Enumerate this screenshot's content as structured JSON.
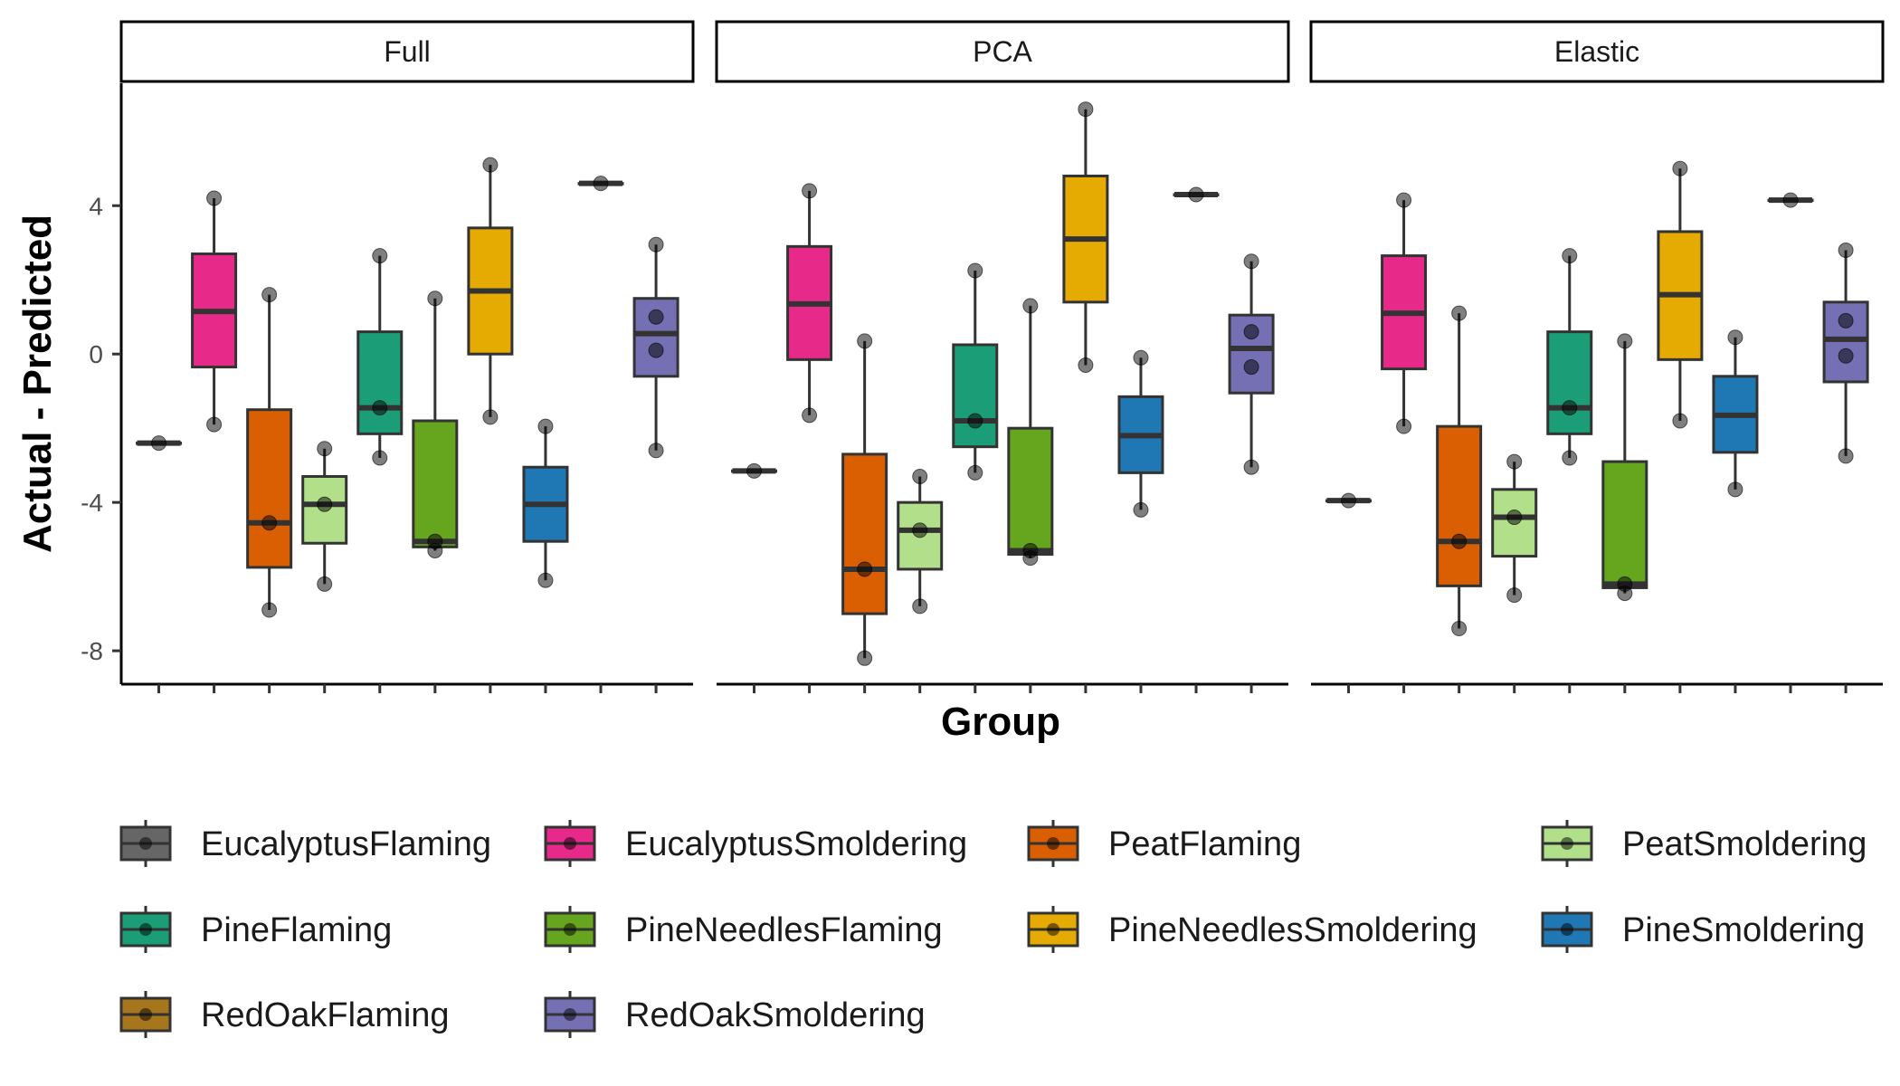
{
  "chart_data": {
    "type": "boxplot",
    "ylabel": "Actual - Predicted",
    "xlabel": "Group",
    "yticks": [
      -8,
      -4,
      0,
      4
    ],
    "ylim": [
      -8.9,
      7.3
    ],
    "colors": {
      "EucalyptusFlaming": "#666666",
      "EucalyptusSmoldering": "#e7298a",
      "PeatFlaming": "#d95f02",
      "PeatSmoldering": "#b2df8a",
      "PineFlaming": "#1b9e77",
      "PineNeedlesFlaming": "#66a61e",
      "PineNeedlesSmoldering": "#e6ab02",
      "PineSmoldering": "#1f78b4",
      "RedOakFlaming": "#a6761d",
      "RedOakSmoldering": "#7570b3"
    },
    "legend": {
      "position": "bottom",
      "entries": [
        "EucalyptusFlaming",
        "EucalyptusSmoldering",
        "PeatFlaming",
        "PeatSmoldering",
        "PineFlaming",
        "PineNeedlesFlaming",
        "PineNeedlesSmoldering",
        "PineSmoldering",
        "RedOakFlaming",
        "RedOakSmoldering"
      ]
    },
    "panels": [
      {
        "title": "Full",
        "boxes": [
          {
            "group": "EucalyptusFlaming",
            "min": -2.4,
            "q1": -2.4,
            "median": -2.4,
            "q3": -2.4,
            "max": -2.4,
            "points": [
              -2.4
            ]
          },
          {
            "group": "EucalyptusSmoldering",
            "min": -1.9,
            "q1": -0.35,
            "median": 1.15,
            "q3": 2.7,
            "max": 4.2,
            "points": [
              4.2,
              -1.9
            ]
          },
          {
            "group": "PeatFlaming",
            "min": -6.9,
            "q1": -5.75,
            "median": -4.55,
            "q3": -1.5,
            "max": 1.6,
            "points": [
              1.6,
              -4.55,
              -6.9
            ]
          },
          {
            "group": "PeatSmoldering",
            "min": -6.2,
            "q1": -5.1,
            "median": -4.05,
            "q3": -3.3,
            "max": -2.55,
            "points": [
              -2.55,
              -4.05,
              -6.2
            ]
          },
          {
            "group": "PineFlaming",
            "min": -2.8,
            "q1": -2.15,
            "median": -1.45,
            "q3": 0.6,
            "max": 2.65,
            "points": [
              2.65,
              -1.45,
              -2.8
            ]
          },
          {
            "group": "PineNeedlesFlaming",
            "min": -5.3,
            "q1": -5.2,
            "median": -5.05,
            "q3": -1.8,
            "max": 1.5,
            "points": [
              1.5,
              -5.05,
              -5.3
            ]
          },
          {
            "group": "PineNeedlesSmoldering",
            "min": -1.7,
            "q1": 0.0,
            "median": 1.7,
            "q3": 3.4,
            "max": 5.1,
            "points": [
              5.1,
              -1.7
            ]
          },
          {
            "group": "PineSmoldering",
            "min": -6.1,
            "q1": -5.05,
            "median": -4.05,
            "q3": -3.05,
            "max": -1.95,
            "points": [
              -1.95,
              -6.1
            ]
          },
          {
            "group": "RedOakFlaming",
            "min": 4.6,
            "q1": 4.6,
            "median": 4.6,
            "q3": 4.6,
            "max": 4.6,
            "points": [
              4.6
            ]
          },
          {
            "group": "RedOakSmoldering",
            "min": -2.6,
            "q1": -0.6,
            "median": 0.55,
            "q3": 1.5,
            "max": 2.95,
            "points": [
              2.95,
              1.0,
              0.1,
              -2.6
            ]
          }
        ]
      },
      {
        "title": "PCA",
        "boxes": [
          {
            "group": "EucalyptusFlaming",
            "min": -3.15,
            "q1": -3.15,
            "median": -3.15,
            "q3": -3.15,
            "max": -3.15,
            "points": [
              -3.15
            ]
          },
          {
            "group": "EucalyptusSmoldering",
            "min": -1.65,
            "q1": -0.15,
            "median": 1.35,
            "q3": 2.9,
            "max": 4.4,
            "points": [
              4.4,
              -1.65
            ]
          },
          {
            "group": "PeatFlaming",
            "min": -8.2,
            "q1": -7.0,
            "median": -5.8,
            "q3": -2.7,
            "max": 0.35,
            "points": [
              0.35,
              -5.8,
              -8.2
            ]
          },
          {
            "group": "PeatSmoldering",
            "min": -6.8,
            "q1": -5.8,
            "median": -4.75,
            "q3": -4.0,
            "max": -3.3,
            "points": [
              -3.3,
              -4.75,
              -6.8
            ]
          },
          {
            "group": "PineFlaming",
            "min": -3.2,
            "q1": -2.5,
            "median": -1.8,
            "q3": 0.25,
            "max": 2.25,
            "points": [
              2.25,
              -1.8,
              -3.2
            ]
          },
          {
            "group": "PineNeedlesFlaming",
            "min": -5.5,
            "q1": -5.4,
            "median": -5.3,
            "q3": -2.0,
            "max": 1.3,
            "points": [
              1.3,
              -5.3,
              -5.5
            ]
          },
          {
            "group": "PineNeedlesSmoldering",
            "min": -0.3,
            "q1": 1.4,
            "median": 3.1,
            "q3": 4.8,
            "max": 6.6,
            "points": [
              6.6,
              -0.3
            ]
          },
          {
            "group": "PineSmoldering",
            "min": -4.2,
            "q1": -3.2,
            "median": -2.2,
            "q3": -1.15,
            "max": -0.1,
            "points": [
              -0.1,
              -4.2
            ]
          },
          {
            "group": "RedOakFlaming",
            "min": 4.3,
            "q1": 4.3,
            "median": 4.3,
            "q3": 4.3,
            "max": 4.3,
            "points": [
              4.3
            ]
          },
          {
            "group": "RedOakSmoldering",
            "min": -3.05,
            "q1": -1.05,
            "median": 0.15,
            "q3": 1.05,
            "max": 2.5,
            "points": [
              2.5,
              0.6,
              -0.35,
              -3.05
            ]
          }
        ]
      },
      {
        "title": "Elastic",
        "boxes": [
          {
            "group": "EucalyptusFlaming",
            "min": -3.95,
            "q1": -3.95,
            "median": -3.95,
            "q3": -3.95,
            "max": -3.95,
            "points": [
              -3.95
            ]
          },
          {
            "group": "EucalyptusSmoldering",
            "min": -1.95,
            "q1": -0.4,
            "median": 1.1,
            "q3": 2.65,
            "max": 4.15,
            "points": [
              4.15,
              -1.95
            ]
          },
          {
            "group": "PeatFlaming",
            "min": -7.4,
            "q1": -6.25,
            "median": -5.05,
            "q3": -1.95,
            "max": 1.1,
            "points": [
              1.1,
              -5.05,
              -7.4
            ]
          },
          {
            "group": "PeatSmoldering",
            "min": -6.5,
            "q1": -5.45,
            "median": -4.4,
            "q3": -3.65,
            "max": -2.9,
            "points": [
              -2.9,
              -4.4,
              -6.5
            ]
          },
          {
            "group": "PineFlaming",
            "min": -2.8,
            "q1": -2.15,
            "median": -1.45,
            "q3": 0.6,
            "max": 2.65,
            "points": [
              2.65,
              -1.45,
              -2.8
            ]
          },
          {
            "group": "PineNeedlesFlaming",
            "min": -6.45,
            "q1": -6.3,
            "median": -6.2,
            "q3": -2.9,
            "max": 0.35,
            "points": [
              0.35,
              -6.2,
              -6.45
            ]
          },
          {
            "group": "PineNeedlesSmoldering",
            "min": -1.8,
            "q1": -0.15,
            "median": 1.6,
            "q3": 3.3,
            "max": 5.0,
            "points": [
              5.0,
              -1.8
            ]
          },
          {
            "group": "PineSmoldering",
            "min": -3.65,
            "q1": -2.65,
            "median": -1.65,
            "q3": -0.6,
            "max": 0.45,
            "points": [
              0.45,
              -3.65
            ]
          },
          {
            "group": "RedOakFlaming",
            "min": 4.15,
            "q1": 4.15,
            "median": 4.15,
            "q3": 4.15,
            "max": 4.15,
            "points": [
              4.15
            ]
          },
          {
            "group": "RedOakSmoldering",
            "min": -2.75,
            "q1": -0.75,
            "median": 0.4,
            "q3": 1.4,
            "max": 2.8,
            "points": [
              2.8,
              0.9,
              -0.05,
              -2.75
            ]
          }
        ]
      }
    ]
  }
}
